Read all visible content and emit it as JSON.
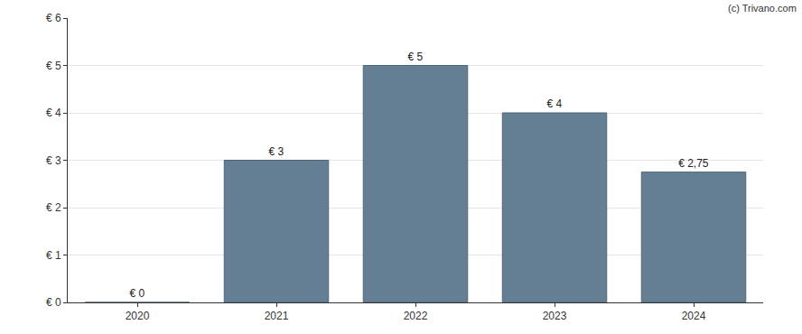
{
  "chart_data": {
    "type": "bar",
    "categories": [
      "2020",
      "2021",
      "2022",
      "2023",
      "2024"
    ],
    "values": [
      0,
      3,
      5,
      4,
      2.75
    ],
    "value_labels": [
      "€ 0",
      "€ 3",
      "€ 5",
      "€ 4",
      "€ 2,75"
    ],
    "data_labels": true,
    "color": "#647f93",
    "ylim": [
      0,
      6
    ],
    "yticks": [
      {
        "value": 0,
        "label": "€ 0"
      },
      {
        "value": 1,
        "label": "€ 1"
      },
      {
        "value": 2,
        "label": "€ 2"
      },
      {
        "value": 3,
        "label": "€ 3"
      },
      {
        "value": 4,
        "label": "€ 4"
      },
      {
        "value": 5,
        "label": "€ 5"
      },
      {
        "value": 6,
        "label": "€ 6"
      }
    ],
    "grid": true,
    "annotations": [
      "(c) Trivano.com"
    ]
  }
}
